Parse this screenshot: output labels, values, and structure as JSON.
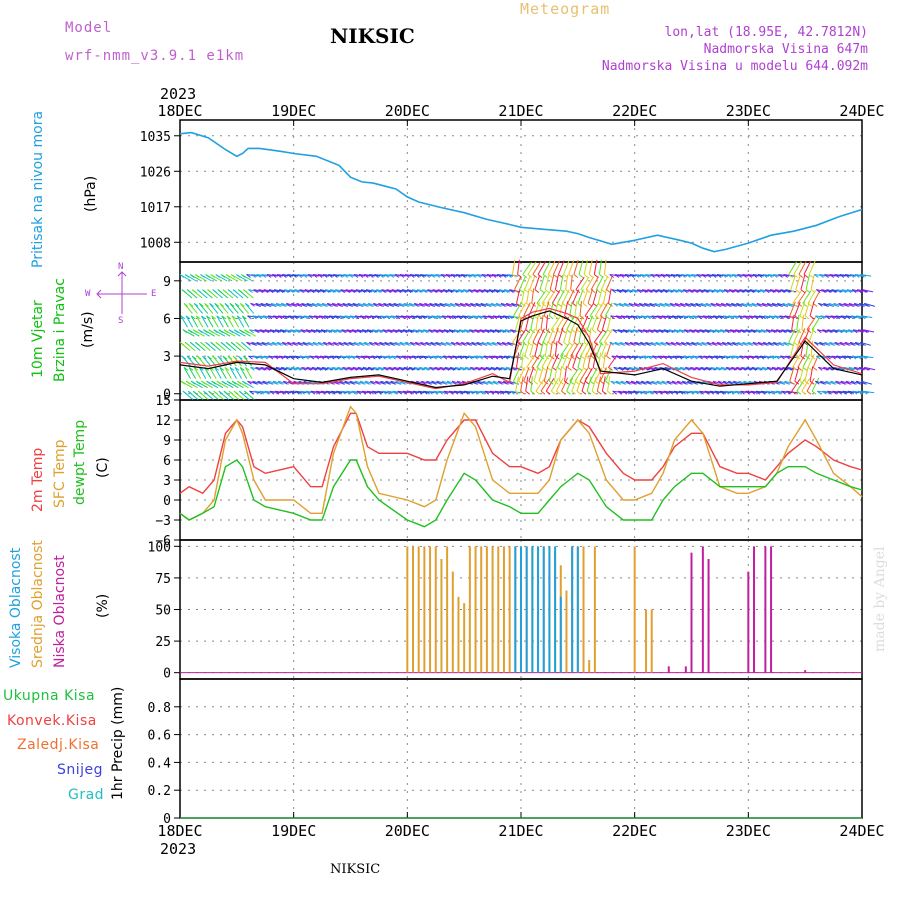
{
  "header": {
    "model_label": "Model",
    "model_name": "wrf-nmm_v3.9.1  e1km",
    "station": "NIKSIC",
    "meteogram": "Meteogram",
    "coords": "lon,lat (18.95E, 42.7812N)",
    "elevation": "Nadmorska Visina 647m",
    "elevation_model": "Nadmorska Visina u modelu 644.092m",
    "year_top": "2023",
    "year_bottom": "2023",
    "footer_station": "NIKSIC",
    "watermark": "made by Angel",
    "colors": {
      "model": "#c060d0",
      "station": "#000000",
      "meteogram": "#e8c070",
      "coords": "#b040d0"
    }
  },
  "x_ticks": [
    "18DEC",
    "19DEC",
    "20DEC",
    "21DEC",
    "22DEC",
    "23DEC",
    "24DEC"
  ],
  "panels": {
    "pressure": {
      "label": "Pritisak na nivou mora",
      "unit": "(hPa)",
      "label_color": "#1fa0e0"
    },
    "wind": {
      "label1": "10m Vjetar",
      "label2": "Brzina i Pravac",
      "unit": "(m/s)",
      "compass": [
        "N",
        "W",
        "E",
        "S"
      ],
      "label_color": "#10c010"
    },
    "temp": {
      "label1": "2m Temp",
      "label2": "SFC Temp",
      "label3": "dewpt Temp",
      "unit": "(C)",
      "colors": {
        "t2": "#f04040",
        "sfc": "#e0a030",
        "dew": "#20c020"
      }
    },
    "cloud": {
      "label1": "Visoka Oblacnost",
      "label2": "Srednja Oblacnost",
      "label3": "Niska Oblacnost",
      "unit": "(%)",
      "colors": {
        "high": "#20a0e0",
        "mid": "#e0a030",
        "low": "#c020a0"
      }
    },
    "precip": {
      "unit": "1hr Precip (mm)",
      "legend": [
        {
          "label": "Ukupna Kisa",
          "color": "#20c040"
        },
        {
          "label": "Konvek.Kisa",
          "color": "#f04040"
        },
        {
          "label": "Zaledj.Kisa",
          "color": "#f07030"
        },
        {
          "label": "Snijeg",
          "color": "#4040e0"
        },
        {
          "label": "Grad",
          "color": "#20c0c0"
        }
      ]
    }
  },
  "chart_data": [
    {
      "type": "line",
      "name": "pressure",
      "ylim": [
        1003,
        1039
      ],
      "yticks": [
        "1035",
        "1026",
        "1017",
        "1008"
      ],
      "ytick_values": [
        1035,
        1026,
        1017,
        1008
      ],
      "x_unit": "day offset from 18DEC 2023",
      "x": [
        0,
        0.1,
        0.25,
        0.4,
        0.5,
        0.55,
        0.6,
        0.7,
        0.9,
        1.0,
        1.2,
        1.4,
        1.5,
        1.6,
        1.7,
        1.9,
        2.0,
        2.1,
        2.3,
        2.5,
        2.7,
        2.9,
        3.0,
        3.2,
        3.4,
        3.5,
        3.6,
        3.8,
        4.0,
        4.2,
        4.4,
        4.5,
        4.6,
        4.7,
        4.8,
        5.0,
        5.2,
        5.4,
        5.6,
        5.8,
        6.0
      ],
      "series": [
        {
          "values": [
            1035.5,
            1035.8,
            1034.5,
            1031.5,
            1029.8,
            1030.5,
            1031.8,
            1031.8,
            1031,
            1030.5,
            1029.8,
            1027.5,
            1024.5,
            1023.3,
            1023,
            1021.5,
            1019.5,
            1018.2,
            1016.8,
            1015.5,
            1013.8,
            1012.5,
            1011.8,
            1011.3,
            1010.8,
            1010.2,
            1009.2,
            1007.5,
            1008.5,
            1009.8,
            1008.5,
            1007.8,
            1006.5,
            1005.6,
            1006.2,
            1007.8,
            1009.8,
            1010.8,
            1012.3,
            1014.5,
            1016.3
          ],
          "color": "#1fa0e0"
        }
      ]
    },
    {
      "type": "line",
      "name": "wind",
      "ylim": [
        -0.5,
        10.5
      ],
      "yticks": [
        "9",
        "6",
        "3",
        "0"
      ],
      "ytick_values": [
        9,
        6,
        3,
        0
      ],
      "x_unit": "day offset from 18DEC 2023",
      "x": [
        0,
        0.25,
        0.5,
        0.75,
        1.0,
        1.25,
        1.5,
        1.75,
        2.0,
        2.25,
        2.5,
        2.75,
        2.9,
        3.0,
        3.1,
        3.25,
        3.4,
        3.5,
        3.6,
        3.7,
        4.0,
        4.25,
        4.5,
        4.75,
        5.0,
        5.25,
        5.5,
        5.75,
        6.0
      ],
      "series": [
        {
          "name": "gust",
          "values": [
            2.5,
            2.2,
            2.6,
            2.5,
            0.8,
            0.8,
            1.2,
            1.4,
            0.9,
            0.4,
            0.8,
            1.6,
            0.9,
            6.0,
            6.5,
            6.8,
            6.4,
            6.0,
            4.5,
            1.6,
            1.8,
            2.4,
            1.3,
            0.7,
            0.7,
            0.9,
            4.5,
            2.3,
            1.6
          ],
          "color": "#f04040"
        },
        {
          "name": "speed",
          "values": [
            2.3,
            2.0,
            2.5,
            2.3,
            1.2,
            0.9,
            1.3,
            1.5,
            1.0,
            0.5,
            0.7,
            1.4,
            1.2,
            5.8,
            6.2,
            6.6,
            6.0,
            5.5,
            4.0,
            1.8,
            1.5,
            2.0,
            1.0,
            0.6,
            0.8,
            1.0,
            4.2,
            2.0,
            1.5
          ],
          "color": "#000000"
        }
      ]
    },
    {
      "type": "line",
      "name": "temperature",
      "ylim": [
        -6,
        15
      ],
      "yticks": [
        "15",
        "12",
        "9",
        "6",
        "3",
        "0",
        "−3",
        "−6"
      ],
      "ytick_values": [
        15,
        12,
        9,
        6,
        3,
        0,
        -3,
        -6
      ],
      "x_unit": "day offset from 18DEC 2023",
      "x": [
        0,
        0.08,
        0.2,
        0.3,
        0.4,
        0.5,
        0.55,
        0.65,
        0.75,
        1.0,
        1.15,
        1.25,
        1.35,
        1.5,
        1.55,
        1.65,
        1.75,
        2.0,
        2.15,
        2.25,
        2.35,
        2.5,
        2.6,
        2.75,
        2.9,
        3.0,
        3.15,
        3.25,
        3.35,
        3.5,
        3.6,
        3.75,
        3.9,
        4.0,
        4.15,
        4.25,
        4.35,
        4.5,
        4.6,
        4.75,
        4.9,
        5.0,
        5.15,
        5.25,
        5.35,
        5.5,
        5.6,
        5.75,
        5.9,
        6.0
      ],
      "series": [
        {
          "name": "2m Temp",
          "values": [
            1,
            2,
            1,
            3,
            10,
            12,
            11,
            5,
            4,
            5,
            2,
            2,
            8,
            13,
            13,
            8,
            7,
            7,
            6,
            6,
            9,
            12,
            12,
            7,
            5,
            5,
            4,
            5,
            9,
            12,
            11,
            7,
            4,
            3,
            3,
            5,
            8,
            10,
            10,
            5,
            4,
            4,
            3,
            5,
            7,
            9,
            8,
            6,
            5,
            4.5
          ],
          "color": "#f04040"
        },
        {
          "name": "SFC Temp",
          "values": [
            -2,
            -3,
            -2,
            0,
            9,
            12,
            10,
            3,
            0,
            0,
            -2,
            -2,
            7,
            14,
            13,
            5,
            1,
            0,
            -1,
            0,
            6,
            13,
            11,
            3,
            1,
            1,
            1,
            3,
            9,
            12,
            10,
            3,
            0,
            0,
            1,
            4,
            9,
            12,
            10,
            2,
            1,
            1,
            2,
            4,
            8,
            12,
            9,
            4,
            2,
            0.5
          ],
          "color": "#e0a030"
        },
        {
          "name": "dewpt Temp",
          "values": [
            -2,
            -3,
            -2,
            -1,
            5,
            6,
            5,
            0,
            -1,
            -2,
            -3,
            -3,
            2,
            6,
            6,
            2,
            0,
            -3,
            -4,
            -3,
            0,
            4,
            3,
            0,
            -1,
            -2,
            -2,
            0,
            2,
            4,
            3,
            -1,
            -3,
            -3,
            -3,
            0,
            2,
            4,
            4,
            2,
            2,
            2,
            2,
            4,
            5,
            5,
            4,
            3,
            2,
            1.5
          ],
          "color": "#20c020"
        }
      ]
    },
    {
      "type": "bar",
      "name": "cloud",
      "ylim": [
        -5,
        105
      ],
      "yticks": [
        "100",
        "75",
        "50",
        "25",
        "0"
      ],
      "ytick_values": [
        100,
        75,
        50,
        25,
        0
      ],
      "x_unit": "day offset from 18DEC 2023",
      "series": [
        {
          "name": "Srednja Oblacnost",
          "color": "#e0a030",
          "x": [
            2.0,
            2.05,
            2.1,
            2.15,
            2.2,
            2.25,
            2.3,
            2.35,
            2.4,
            2.45,
            2.5,
            2.55,
            2.6,
            2.65,
            2.7,
            2.75,
            2.8,
            2.85,
            2.9,
            2.95,
            3.0,
            3.05,
            3.1,
            3.15,
            3.2,
            3.25,
            3.3,
            3.35,
            3.4,
            3.45,
            3.5,
            3.55,
            3.6,
            3.65,
            4.0,
            4.1,
            4.15
          ],
          "values": [
            100,
            100,
            100,
            100,
            100,
            100,
            90,
            100,
            80,
            60,
            55,
            100,
            100,
            100,
            100,
            100,
            100,
            100,
            100,
            100,
            100,
            100,
            100,
            100,
            100,
            100,
            95,
            85,
            65,
            100,
            100,
            100,
            10,
            100,
            100,
            50,
            50
          ]
        },
        {
          "name": "Visoka Oblacnost",
          "color": "#20a0e0",
          "x": [
            2.95,
            3.0,
            3.05,
            3.1,
            3.15,
            3.2,
            3.25,
            3.3,
            3.35,
            3.45,
            3.5
          ],
          "values": [
            100,
            100,
            100,
            100,
            100,
            100,
            100,
            100,
            60,
            100,
            100
          ]
        },
        {
          "name": "Niska Oblacnost",
          "color": "#c020a0",
          "x": [
            4.3,
            4.45,
            4.5,
            4.6,
            4.65,
            5.0,
            5.05,
            5.15,
            5.2,
            5.5
          ],
          "values": [
            5,
            5,
            95,
            100,
            90,
            80,
            100,
            100,
            100,
            2
          ]
        }
      ]
    },
    {
      "type": "bar",
      "name": "precip",
      "ylim": [
        0,
        1
      ],
      "yticks": [
        "0.8",
        "0.6",
        "0.4",
        "0.2",
        "0"
      ],
      "ytick_values": [
        0.8,
        0.6,
        0.4,
        0.2,
        0
      ],
      "series": []
    }
  ]
}
